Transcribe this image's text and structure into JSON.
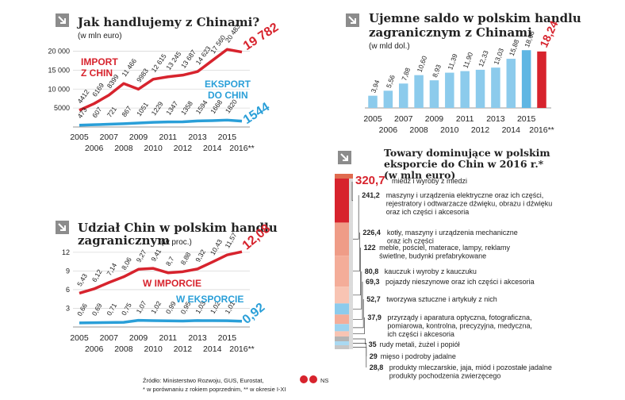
{
  "colors": {
    "red": "#d7232d",
    "blue": "#2a9fd8",
    "blue_light": "#8ccbec",
    "blue_mid": "#5fb6e3",
    "grid": "#d9d9d9",
    "text": "#222222"
  },
  "arrow_icon": "corner-arrow-icon",
  "chart_data": [
    {
      "id": "trade",
      "type": "line",
      "title": "Jak handlujemy z Chinami?",
      "subtitle": "(w mln euro)",
      "x": [
        "2005",
        "2006",
        "2007",
        "2008",
        "2009",
        "2010",
        "2011",
        "2012",
        "2013",
        "2014",
        "2015",
        "2016**"
      ],
      "yticks": [
        "20 000",
        "15 000",
        "10 000",
        "5000"
      ],
      "ytick_values": [
        20000,
        15000,
        10000,
        5000
      ],
      "ylim": [
        0,
        22000
      ],
      "series": [
        {
          "name": "IMPORT Z CHIN",
          "name_lines": [
            "IMPORT",
            "Z CHIN"
          ],
          "color": "red",
          "values": [
            4412,
            6169,
            8399,
            11466,
            9983,
            12615,
            13245,
            13687,
            14623,
            17560,
            20483,
            19782
          ],
          "labels": [
            "4412",
            "6169",
            "8399",
            "11 466",
            "9983",
            "12 615",
            "13 245",
            "13 687",
            "14 623",
            "17 560",
            "20 483",
            "19 782"
          ]
        },
        {
          "name": "EKSPORT DO CHIN",
          "name_lines": [
            "EKSPORT",
            "DO CHIN"
          ],
          "color": "blue",
          "values": [
            473,
            607,
            721,
            867,
            1051,
            1229,
            1347,
            1358,
            1594,
            1668,
            1820,
            1544
          ],
          "labels": [
            "473",
            "607",
            "721",
            "867",
            "1051",
            "1229",
            "1347",
            "1358",
            "1594",
            "1668",
            "1820",
            "1544"
          ]
        }
      ]
    },
    {
      "id": "saldo",
      "type": "bar",
      "title_lines": [
        "Ujemne saldo w polskim handlu",
        "zagranicznym z Chinami"
      ],
      "subtitle": "(w mld dol.)",
      "categories": [
        "2005",
        "2006",
        "2007",
        "2008",
        "2009",
        "2010",
        "2011",
        "2012",
        "2013",
        "2014",
        "2015",
        "2016**"
      ],
      "values": [
        3.94,
        5.56,
        7.88,
        10.6,
        8.93,
        11.39,
        11.9,
        12.33,
        13.03,
        15.88,
        18.66,
        18.24
      ],
      "labels": [
        "3,94",
        "5,56",
        "7,88",
        "10,60",
        "8,93",
        "11,39",
        "11,90",
        "12,33",
        "13,03",
        "15,88",
        "18,66",
        "18,24"
      ],
      "ylim": [
        0,
        20
      ]
    },
    {
      "id": "share",
      "type": "line",
      "title_lines": [
        "Udział Chin w polskim handlu",
        "zagranicznym"
      ],
      "subtitle": "(w proc.)",
      "x": [
        "2005",
        "2006",
        "2007",
        "2008",
        "2009",
        "2010",
        "2011",
        "2012",
        "2013",
        "2014",
        "2015",
        "2016**"
      ],
      "yticks": [
        "12",
        "9",
        "6",
        "3"
      ],
      "ytick_values": [
        12,
        9,
        6,
        3
      ],
      "ylim": [
        0,
        13
      ],
      "series": [
        {
          "name": "W IMPORCIE",
          "color": "red",
          "values": [
            5.43,
            6.12,
            7.14,
            8.06,
            9.27,
            9.41,
            8.7,
            8.88,
            9.32,
            10.43,
            11.57,
            12.08
          ],
          "labels": [
            "5,43",
            "6,12",
            "7,14",
            "8,06",
            "9,27",
            "9,41",
            "8,7",
            "8,88",
            "9,32",
            "10,43",
            "11,57",
            "12,08"
          ]
        },
        {
          "name": "W EKSPORCIE",
          "color": "blue",
          "values": [
            0.66,
            0.69,
            0.71,
            0.75,
            1.07,
            1.02,
            0.99,
            0.95,
            1.03,
            1.02,
            1.01,
            0.92
          ],
          "labels": [
            "0,66",
            "0,69",
            "0,71",
            "0,75",
            "1,07",
            "1,02",
            "0,99",
            "0,95",
            "1,03",
            "1,02",
            "1,01",
            "0,92"
          ]
        }
      ]
    },
    {
      "id": "goods",
      "type": "bar",
      "title_lines": [
        "Towary dominujące w polskim",
        "eksporcie do Chin w 2016 r.*",
        "(w mln euro)"
      ],
      "items": [
        {
          "value": 320.7,
          "label": "320,7",
          "text": [
            "miedź i wyroby z miedzi"
          ]
        },
        {
          "value": 241.2,
          "label": "241,2",
          "text": [
            "maszyny i urządzenia elektryczne oraz ich części,",
            "rejestratory i odtwarzacze dźwięku, obrazu i dźwięku",
            "oraz ich części i akcesoria"
          ]
        },
        {
          "value": 226.4,
          "label": "226,4",
          "text": [
            "kotły, maszyny i urządzenia mechaniczne",
            "oraz ich części"
          ]
        },
        {
          "value": 122,
          "label": "122",
          "text": [
            "meble, pościel, materace, lampy, reklamy",
            "świetlne, budynki prefabrykowane"
          ]
        },
        {
          "value": 80.8,
          "label": "80,8",
          "text": [
            "kauczuk i wyroby z kauczuku"
          ]
        },
        {
          "value": 69.3,
          "label": "69,3",
          "text": [
            "pojazdy nieszynowe oraz ich części i akcesoria"
          ]
        },
        {
          "value": 52.7,
          "label": "52,7",
          "text": [
            "tworzywa sztuczne i artykuły z nich"
          ]
        },
        {
          "value": 37.9,
          "label": "37,9",
          "text": [
            "przyrządy i aparatura optyczna, fotograficzna,",
            "pomiarowa, kontrolna, precyzyjna, medyczna,",
            "ich części i akcesoria"
          ]
        },
        {
          "value": 35,
          "label": "35",
          "text": [
            "rudy metali, żużel i popiół"
          ]
        },
        {
          "value": 29,
          "label": "29",
          "text": [
            "mięso i podroby jadalne"
          ]
        },
        {
          "value": 28.8,
          "label": "28,8",
          "text": [
            "produkty mleczarskie, jaja, miód i pozostałe jadalne",
            "produkty pochodzenia zwierzęcego"
          ]
        }
      ]
    }
  ],
  "footer": {
    "source": "Źródło: Ministerstwo Rozwoju, GUS, Eurostat,",
    "note": "* w porównaniu z rokiem poprzednim, ** w okresie I-XI",
    "logo": "NS"
  }
}
